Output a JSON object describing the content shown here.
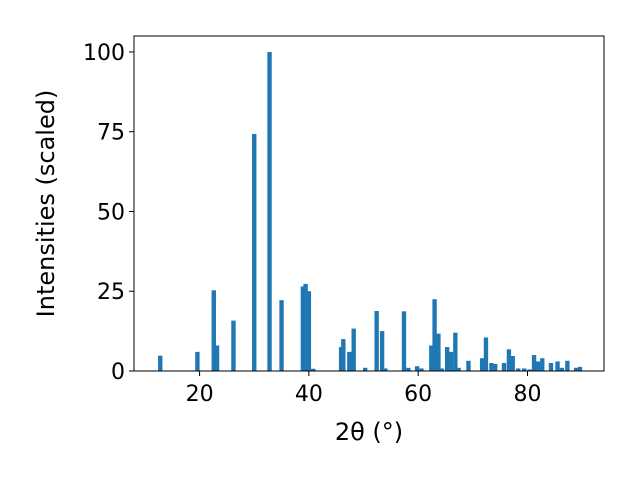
{
  "chart_data": {
    "type": "bar",
    "xlabel": "2θ (°)",
    "ylabel": "Intensities (scaled)",
    "xlim": [
      8,
      94
    ],
    "ylim": [
      0,
      105
    ],
    "xticks": [
      20,
      40,
      60,
      80
    ],
    "yticks": [
      0,
      25,
      50,
      75,
      100
    ],
    "bar_color": "#1f77b4",
    "bar_width": 0.8,
    "x": [
      12.8,
      19.6,
      22.6,
      23.2,
      26.2,
      30.0,
      32.8,
      35.0,
      38.9,
      39.4,
      40.0,
      40.8,
      45.9,
      46.3,
      47.4,
      48.2,
      50.3,
      52.4,
      53.4,
      54.0,
      57.4,
      58.2,
      59.8,
      60.6,
      62.4,
      63.0,
      63.7,
      64.3,
      65.3,
      66.0,
      66.8,
      67.4,
      69.2,
      71.7,
      72.4,
      73.4,
      74.1,
      75.7,
      76.6,
      77.3,
      78.3,
      79.4,
      80.4,
      81.2,
      81.9,
      82.7,
      84.3,
      85.5,
      86.3,
      87.3,
      88.9,
      89.6
    ],
    "values": [
      4.8,
      6.0,
      25.3,
      8.0,
      15.8,
      74.3,
      100.0,
      22.2,
      26.5,
      27.3,
      25.0,
      0.7,
      7.5,
      10.0,
      6.0,
      13.3,
      1.0,
      18.8,
      12.5,
      0.8,
      18.7,
      1.0,
      1.5,
      0.8,
      8.0,
      22.5,
      11.7,
      0.8,
      7.5,
      6.0,
      12.0,
      1.0,
      3.2,
      4.0,
      10.5,
      2.5,
      2.2,
      2.5,
      6.8,
      4.7,
      0.8,
      0.8,
      0.5,
      5.0,
      3.0,
      4.0,
      2.5,
      3.0,
      1.0,
      3.2,
      1.0,
      1.3
    ]
  }
}
